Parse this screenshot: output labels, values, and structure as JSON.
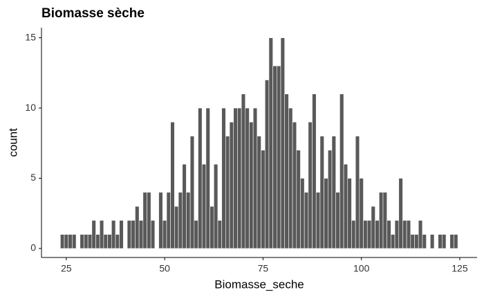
{
  "chart_data": {
    "type": "histogram",
    "title": "Biomasse sèche",
    "x_label": "Biomasse_seche",
    "y_label": "count",
    "bins": [
      23.5,
      24.5,
      25.5,
      26.5,
      27.5,
      28.5,
      29.5,
      30.5,
      31.5,
      32.5,
      33.5,
      34.5,
      35.5,
      36.5,
      37.5,
      38.5,
      39.5,
      40.5,
      41.5,
      42.5,
      43.5,
      44.5,
      45.5,
      46.5,
      47.5,
      48.5,
      49.5,
      50.5,
      51.5,
      52.5,
      53.5,
      54.5,
      55.5,
      56.5,
      57.5,
      58.5,
      59.5,
      60.5,
      61.5,
      62.5,
      63.5,
      64.5,
      65.5,
      66.5,
      67.5,
      68.5,
      69.5,
      70.5,
      71.5,
      72.5,
      73.5,
      74.5,
      75.5,
      76.5,
      77.5,
      78.5,
      79.5,
      80.5,
      81.5,
      82.5,
      83.5,
      84.5,
      85.5,
      86.5,
      87.5,
      88.5,
      89.5,
      90.5,
      91.5,
      92.5,
      93.5,
      94.5,
      95.5,
      96.5,
      97.5,
      98.5,
      99.5,
      100.5,
      101.5,
      102.5,
      103.5,
      104.5,
      105.5,
      106.5,
      107.5,
      108.5,
      109.5,
      110.5,
      111.5,
      112.5,
      113.5,
      114.5,
      115.5,
      116.5,
      117.5,
      118.5,
      119.5,
      120.5,
      121.5,
      122.5,
      123.5,
      124.5
    ],
    "values": [
      1,
      1,
      1,
      1,
      0,
      1,
      1,
      1,
      2,
      1,
      2,
      1,
      1,
      2,
      1,
      2,
      0,
      2,
      2,
      3,
      2,
      4,
      4,
      2,
      0,
      4,
      2,
      4,
      9,
      3,
      4,
      6,
      4,
      8,
      2,
      10,
      6,
      10,
      3,
      6,
      2,
      10,
      8,
      9,
      10,
      10,
      11,
      10,
      9,
      10,
      8,
      7,
      12,
      15,
      13,
      13,
      15,
      11,
      10,
      9,
      7,
      5,
      4,
      9,
      11,
      4,
      8,
      5,
      7,
      8,
      4,
      11,
      6,
      5,
      2,
      8,
      5,
      2,
      2,
      3,
      2,
      4,
      4,
      2,
      1,
      2,
      5,
      2,
      2,
      1,
      1,
      2,
      1,
      0,
      1,
      0,
      1,
      1,
      0,
      1,
      1
    ],
    "color": "#595959",
    "xlim": [
      18.7,
      129.4
    ],
    "xticks": [
      25,
      50,
      75,
      100,
      125
    ],
    "ylim": [
      -0.64,
      15.72
    ],
    "yticks": [
      0,
      5,
      10,
      15
    ]
  }
}
